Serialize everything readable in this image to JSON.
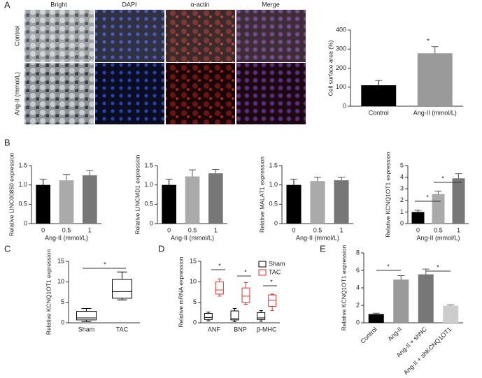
{
  "panel_labels": [
    "A",
    "B",
    "C",
    "D",
    "E"
  ],
  "images": {
    "columns": [
      "Bright",
      "DAPI",
      "α-actin",
      "Merge"
    ],
    "rows": [
      "Control",
      "Ang-II (mmol/L)"
    ]
  },
  "chart_data": [
    {
      "type": "bar",
      "categories": [
        "Control",
        "Ang-II (mmol/L)"
      ],
      "values": [
        110,
        278
      ],
      "errors": [
        25,
        35
      ],
      "colors": [
        "#000000",
        "#9a9a9a"
      ],
      "ylabel": "Cell surface area (%)",
      "ylim": [
        0,
        400
      ],
      "yticks": [
        0,
        100,
        200,
        300,
        400
      ],
      "annotations": [
        "*"
      ]
    },
    {
      "type": "bar",
      "categories": [
        "0",
        "0.5",
        "1"
      ],
      "values": [
        1.0,
        1.12,
        1.25
      ],
      "errors": [
        0.15,
        0.15,
        0.12
      ],
      "colors": [
        "#000000",
        "#aaaaaa",
        "#777777"
      ],
      "xlabel": "Ang-II (mmol/L)",
      "ylabel": "Relative LINC00850 expression",
      "ylim": [
        0,
        1.5
      ],
      "yticks": [
        0,
        0.5,
        {
          "value": 1,
          "label": "1.0"
        },
        1.5
      ]
    },
    {
      "type": "bar",
      "categories": [
        "0",
        "0.5",
        "1"
      ],
      "values": [
        1.0,
        1.22,
        1.3
      ],
      "errors": [
        0.15,
        0.17,
        0.1
      ],
      "colors": [
        "#000000",
        "#aaaaaa",
        "#777777"
      ],
      "xlabel": "Ang-II (mmol/L)",
      "ylabel": "Relative LINCMD1 expression",
      "ylim": [
        0,
        1.5
      ],
      "yticks": [
        0,
        0.5,
        {
          "value": 1,
          "label": "1.0"
        },
        1.5
      ]
    },
    {
      "type": "bar",
      "categories": [
        "0",
        "0.5",
        "1"
      ],
      "values": [
        1.0,
        1.1,
        1.12
      ],
      "errors": [
        0.15,
        0.1,
        0.08
      ],
      "colors": [
        "#000000",
        "#aaaaaa",
        "#777777"
      ],
      "xlabel": "Ang-II (mmol/L)",
      "ylabel": "Relative MALAT1 expression",
      "ylim": [
        0,
        1.5
      ],
      "yticks": [
        0,
        0.5,
        {
          "value": 1,
          "label": "1.0"
        },
        1.5
      ]
    },
    {
      "type": "bar",
      "categories": [
        "0",
        "0.5",
        "1"
      ],
      "values": [
        1.0,
        2.55,
        3.9
      ],
      "errors": [
        0.15,
        0.25,
        0.4
      ],
      "colors": [
        "#000000",
        "#aaaaaa",
        "#777777"
      ],
      "xlabel": "Ang-II (mmol/L)",
      "ylabel": "Relative KCNQ1OT1 expression",
      "ylim": [
        0,
        5
      ],
      "yticks": [
        0,
        1,
        2,
        3,
        4,
        5
      ],
      "annotations": [
        "*",
        "*"
      ]
    },
    {
      "type": "box",
      "categories": [
        "Sham",
        "TAC"
      ],
      "color": "#000000",
      "boxes": [
        {
          "min": 0.3,
          "q1": 0.7,
          "median": 1.2,
          "q3": 2.8,
          "max": 3.5
        },
        {
          "min": 5.6,
          "q1": 6.0,
          "median": 7.6,
          "q3": 10.6,
          "max": 12.4
        }
      ],
      "ylabel": "Relative KCNQ1OT1 expression",
      "ylim": [
        0,
        15
      ],
      "yticks": [
        0,
        5,
        10,
        15
      ],
      "annotations": [
        "*"
      ]
    },
    {
      "type": "grouped-box",
      "categories": [
        "ANF",
        "BNP",
        "β-MHC"
      ],
      "series": [
        {
          "name": "Sham",
          "color": "#000000",
          "boxes": [
            {
              "min": 0.5,
              "q1": 0.8,
              "median": 1.3,
              "q3": 2.3,
              "max": 2.6
            },
            {
              "min": 0.3,
              "q1": 0.7,
              "median": 1.0,
              "q3": 2.9,
              "max": 3.5
            },
            {
              "min": 0.4,
              "q1": 0.8,
              "median": 1.2,
              "q3": 2.5,
              "max": 3.0
            }
          ]
        },
        {
          "name": "TAC",
          "color": "#e03030",
          "boxes": [
            {
              "min": 6.5,
              "q1": 7.0,
              "median": 8.0,
              "q3": 10.0,
              "max": 10.7
            },
            {
              "min": 4.5,
              "q1": 5.0,
              "median": 6.5,
              "q3": 8.5,
              "max": 9.8
            },
            {
              "min": 3.0,
              "q1": 4.0,
              "median": 5.5,
              "q3": 6.8,
              "max": 7.0
            }
          ]
        }
      ],
      "ylabel": "Relative mRNA expression",
      "ylim": [
        0,
        15
      ],
      "yticks": [
        0,
        5,
        10,
        15
      ],
      "legend": "upper right",
      "annotations": [
        "*",
        "*",
        "*"
      ]
    },
    {
      "type": "bar",
      "categories": [
        "Control",
        "Ang-II",
        "Ang-II + shNC",
        "Ang-II + shKCNQ1OT1"
      ],
      "values": [
        1.0,
        4.95,
        5.55,
        1.95
      ],
      "errors": [
        0.1,
        0.45,
        0.6,
        0.1
      ],
      "colors": [
        "#000000",
        "#9a9a9a",
        "#777777",
        "#cccccc"
      ],
      "ylabel": "Relative KCNQ1OT1 expression",
      "ylim": [
        0,
        8
      ],
      "yticks": [
        0,
        2,
        4,
        6,
        8
      ],
      "annotations": [
        "*",
        "*"
      ]
    }
  ]
}
